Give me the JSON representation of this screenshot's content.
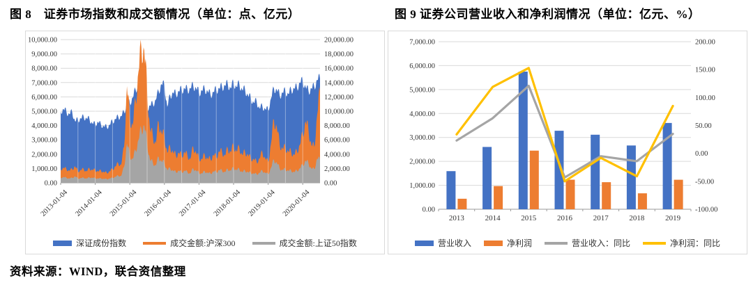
{
  "source_note": "资料来源：WIND，联合资信整理",
  "grid_color": "#d9d9d9",
  "axis_color": "#9a9a9a",
  "chart_data": [
    {
      "id": "fig8",
      "type": "area",
      "title": "图 8　证券市场指数和成交额情况（单位：点、亿元）",
      "x_start": "2013-01",
      "x_interval": "month",
      "x_tick_labels": [
        "2013-01-04",
        "2014-01-04",
        "2015-01-04",
        "2016-01-04",
        "2017-01-04",
        "2018-01-04",
        "2019-01-04",
        "2020-01-04"
      ],
      "left_axis": {
        "min": 0,
        "max": 10000,
        "step": 1000,
        "ticks": [
          "10,000.00",
          "9,000.00",
          "8,000.00",
          "7,000.00",
          "6,000.00",
          "5,000.00",
          "4,000.00",
          "3,000.00",
          "2,000.00",
          "1,000.00",
          "0.00"
        ]
      },
      "right_axis": {
        "min": 0,
        "max": 20000,
        "step": 2000,
        "ticks": [
          "20,000.00",
          "18,000.00",
          "16,000.00",
          "14,000.00",
          "12,000.00",
          "10,000.00",
          "8,000.00",
          "6,000.00",
          "4,000.00",
          "2,000.00",
          "0.00"
        ]
      },
      "series": [
        {
          "name": "深证成份指数",
          "color": "#4472C4",
          "axis": "left",
          "kind": "area",
          "marker": "bar",
          "values": [
            5000,
            5150,
            4950,
            4800,
            4950,
            4300,
            4400,
            4500,
            4600,
            4500,
            4450,
            4150,
            4100,
            4250,
            4050,
            3950,
            3900,
            4050,
            4300,
            4450,
            4600,
            4650,
            4950,
            5500,
            5600,
            5950,
            6500,
            6900,
            7000,
            6600,
            5200,
            5400,
            5500,
            5800,
            6400,
            6900,
            6800,
            5300,
            6100,
            6300,
            6200,
            6400,
            6500,
            6600,
            6500,
            6600,
            6800,
            6600,
            6300,
            6450,
            6550,
            6400,
            6150,
            6350,
            6500,
            6600,
            6700,
            6800,
            6900,
            6600,
            7000,
            6700,
            6900,
            6500,
            6500,
            6100,
            5900,
            5600,
            5700,
            5200,
            5350,
            5150,
            5100,
            5900,
            6600,
            6500,
            6100,
            6300,
            6400,
            6200,
            6500,
            6600,
            6650,
            7000,
            7100,
            6700,
            6400,
            6600,
            6700,
            7200,
            7300
          ]
        },
        {
          "name": "成交金额:沪深300",
          "color": "#ED7D31",
          "axis": "right",
          "kind": "area",
          "marker": "line",
          "values": [
            1900,
            2100,
            1900,
            1700,
            1900,
            2300,
            1600,
            1800,
            1900,
            1600,
            2000,
            1800,
            1800,
            1600,
            1700,
            1500,
            1400,
            1600,
            1900,
            2300,
            2700,
            2500,
            5000,
            13500,
            9000,
            8000,
            11500,
            15500,
            19000,
            18500,
            13000,
            7500,
            6500,
            5500,
            8500,
            7000,
            6500,
            4200,
            5000,
            4300,
            3800,
            4200,
            3800,
            4300,
            3800,
            3300,
            5000,
            4200,
            3400,
            3300,
            3900,
            3400,
            3300,
            3900,
            3600,
            4400,
            4300,
            3800,
            4800,
            4300,
            5200,
            4400,
            4900,
            3900,
            4300,
            3900,
            3400,
            3300,
            2900,
            3400,
            4300,
            3400,
            2900,
            5500,
            8800,
            7800,
            5300,
            4800,
            4900,
            4400,
            4300,
            3900,
            4400,
            5300,
            6800,
            8600,
            7300,
            5300,
            5000,
            9500,
            12800
          ]
        },
        {
          "name": "成交金额:上证50指数",
          "color": "#A5A5A5",
          "axis": "right",
          "kind": "area",
          "marker": "line",
          "values": [
            700,
            800,
            700,
            600,
            700,
            900,
            600,
            650,
            700,
            600,
            750,
            700,
            650,
            600,
            620,
            550,
            520,
            600,
            700,
            850,
            1000,
            950,
            2200,
            5500,
            3800,
            3300,
            4500,
            6000,
            7500,
            8000,
            5500,
            3200,
            2800,
            2400,
            3600,
            3000,
            2800,
            1800,
            2000,
            1700,
            1500,
            1700,
            1500,
            1700,
            1500,
            1300,
            2000,
            1700,
            1400,
            1300,
            1600,
            1400,
            1300,
            1600,
            1500,
            1800,
            1700,
            1500,
            1900,
            1700,
            2100,
            1800,
            1900,
            1500,
            1700,
            1500,
            1400,
            1300,
            1200,
            1400,
            1700,
            1400,
            1200,
            2100,
            3200,
            2800,
            2000,
            1800,
            1900,
            1700,
            1700,
            1500,
            1700,
            2000,
            2500,
            3100,
            2700,
            2000,
            1900,
            3400,
            3200
          ]
        }
      ]
    },
    {
      "id": "fig9",
      "type": "bar-line",
      "title": "图 9 证券公司营业收入和净利润情况（单位：亿元、%）",
      "categories": [
        "2013",
        "2014",
        "2015",
        "2016",
        "2017",
        "2018",
        "2019"
      ],
      "left_axis": {
        "min": 0,
        "max": 7000,
        "step": 1000,
        "ticks": [
          "7,000.00",
          "6,000.00",
          "5,000.00",
          "4,000.00",
          "3,000.00",
          "2,000.00",
          "1,000.00",
          "0.00"
        ]
      },
      "right_axis": {
        "min": -100,
        "max": 200,
        "step": 50,
        "ticks": [
          "200.00",
          "150.00",
          "100.00",
          "50.00",
          "0.00",
          "-50.00",
          "-100.00"
        ]
      },
      "series": [
        {
          "name": "营业收入",
          "color": "#4472C4",
          "axis": "left",
          "kind": "bar",
          "marker": "bar",
          "values": [
            1592,
            2603,
            5752,
            3280,
            3113,
            2663,
            3605
          ]
        },
        {
          "name": "净利润",
          "color": "#ED7D31",
          "axis": "left",
          "kind": "bar",
          "marker": "bar",
          "values": [
            440,
            966,
            2448,
            1234,
            1130,
            666,
            1231
          ]
        },
        {
          "name": "营业收入：同比",
          "color": "#A5A5A5",
          "axis": "right",
          "kind": "line",
          "marker": "line",
          "values": [
            23,
            63,
            121,
            -43,
            -5,
            -14,
            35
          ]
        },
        {
          "name": "净利润：同比",
          "color": "#FFC000",
          "axis": "right",
          "kind": "line",
          "marker": "line",
          "values": [
            34,
            119,
            153,
            -50,
            -8,
            -41,
            85
          ]
        }
      ]
    }
  ]
}
